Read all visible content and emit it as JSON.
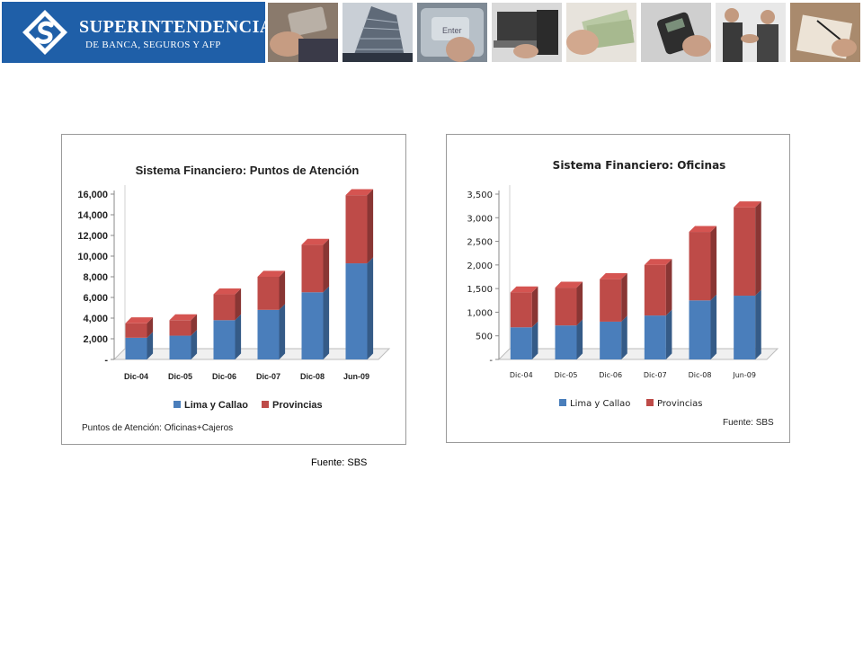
{
  "header": {
    "logo_name": "SUPERINTENDENCIA",
    "logo_subtitle": "DE BANCA, SEGUROS Y AFP",
    "brand_color": "#1f5fa8",
    "photos": [
      "credit-card",
      "building",
      "keyboard-enter",
      "laptop-hand",
      "cash-hand",
      "card-terminal",
      "handshake",
      "signing-document"
    ]
  },
  "colors": {
    "lima": "#4a7ebb",
    "provincias": "#be4b48"
  },
  "chart_data": [
    {
      "type": "bar",
      "stacked": true,
      "title": "Sistema Financiero: Puntos de Atención",
      "categories": [
        "Dic-04",
        "Dic-05",
        "Dic-06",
        "Dic-07",
        "Dic-08",
        "Jun-09"
      ],
      "series": [
        {
          "name": "Lima y Callao",
          "values": [
            2100,
            2300,
            3800,
            4800,
            6500,
            9300
          ]
        },
        {
          "name": "Provincias",
          "values": [
            1400,
            1500,
            2500,
            3200,
            4600,
            6600
          ]
        }
      ],
      "ylim": [
        0,
        16000
      ],
      "yticks": [
        "-",
        "2,000",
        "4,000",
        "6,000",
        "8,000",
        "10,000",
        "12,000",
        "14,000",
        "16,000"
      ],
      "legend": "bottom",
      "note": "Puntos de Atención: Oficinas+Cajeros"
    },
    {
      "type": "bar",
      "stacked": true,
      "title": "Sistema Financiero: Oficinas",
      "categories": [
        "Dic-04",
        "Dic-05",
        "Dic-06",
        "Dic-07",
        "Dic-08",
        "Jun-09"
      ],
      "series": [
        {
          "name": "Lima y Callao",
          "values": [
            680,
            720,
            800,
            930,
            1250,
            1350
          ]
        },
        {
          "name": "Provincias",
          "values": [
            740,
            800,
            900,
            1070,
            1450,
            1870
          ]
        }
      ],
      "ylim": [
        0,
        3500
      ],
      "yticks": [
        "-",
        "500",
        "1,000",
        "1,500",
        "2,000",
        "2,500",
        "3,000",
        "3,500"
      ],
      "legend": "bottom",
      "note": "Fuente: SBS"
    }
  ],
  "footer": {
    "source": "Fuente: SBS"
  }
}
